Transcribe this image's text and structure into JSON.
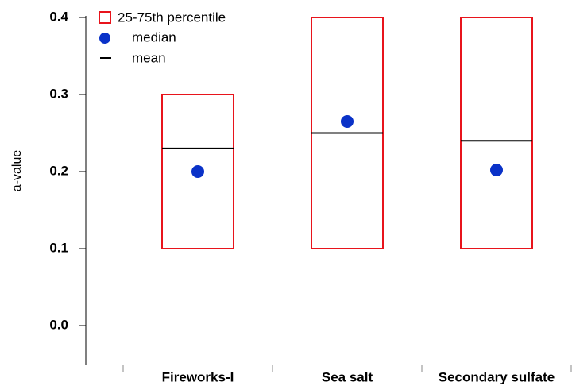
{
  "chart_data": {
    "type": "box",
    "y_label": "a-value",
    "categories": [
      "Fireworks-I",
      "Sea salt",
      "Secondary sulfate"
    ],
    "series": [
      {
        "name": "25-75th percentile",
        "color": "#e8141c",
        "low": [
          0.1,
          0.1,
          0.1
        ],
        "high": [
          0.3,
          0.4,
          0.4
        ]
      },
      {
        "name": "median",
        "color": "#0a32c8",
        "values": [
          0.2,
          0.265,
          0.202
        ]
      },
      {
        "name": "mean",
        "color": "#000000",
        "values": [
          0.23,
          0.25,
          0.24
        ]
      }
    ],
    "ylim": [
      -0.05,
      0.4
    ],
    "yticks": [
      {
        "value": 0,
        "label": "0.0"
      },
      0.1,
      0.2,
      0.3,
      0.4
    ]
  }
}
